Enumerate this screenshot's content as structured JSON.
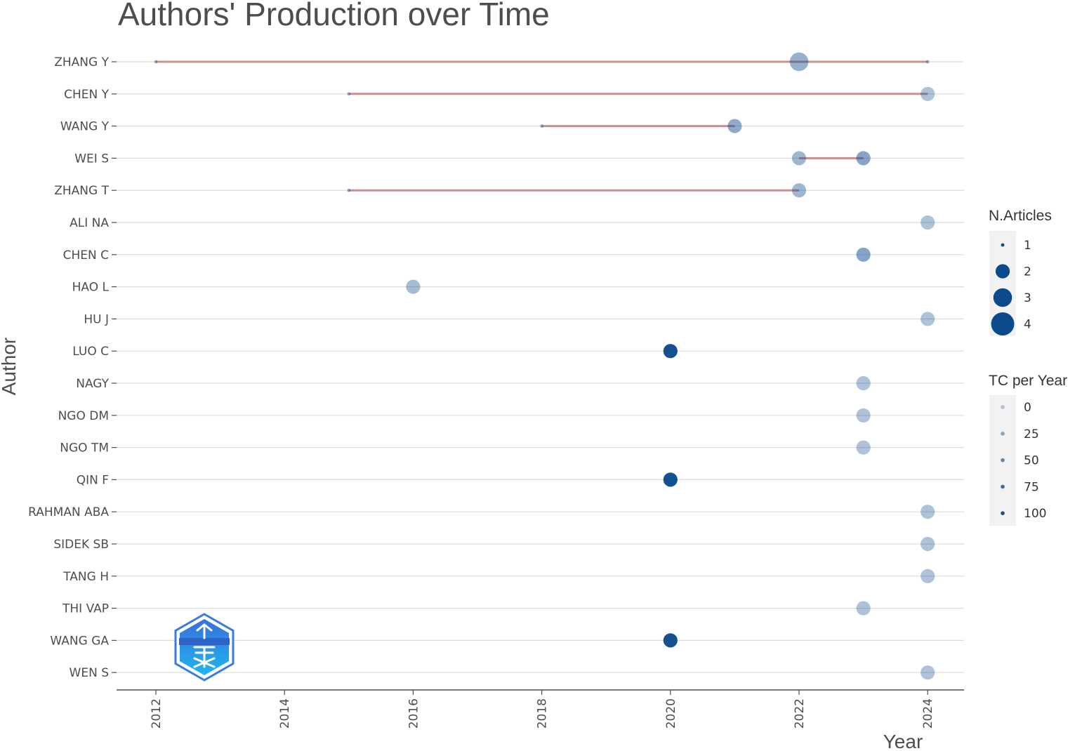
{
  "chart_data": {
    "type": "scatter",
    "title": "Authors' Production over Time",
    "xlabel": "Year",
    "ylabel": "Author",
    "xlim": [
      2011.5,
      2024.7
    ],
    "xticks": [
      2012,
      2014,
      2016,
      2018,
      2020,
      2022,
      2024
    ],
    "grid": "horizontal",
    "legend_position": "right",
    "colors": {
      "point": "#0d4a8c",
      "line": "#c08080",
      "grid": "#dcdcdc"
    },
    "authors": [
      "ZHANG Y",
      "CHEN Y",
      "WANG Y",
      "WEI S",
      "ZHANG T",
      "ALI NA",
      "CHEN C",
      "HAO L",
      "HU J",
      "LUO C",
      "NAGY",
      "NGO DM",
      "NGO TM",
      "QIN F",
      "RAHMAN ABA",
      "SIDEK SB",
      "TANG H",
      "THI VAP",
      "WANG GA",
      "WEN S"
    ],
    "timelines": [
      {
        "author": "ZHANG Y",
        "from": 2012,
        "to": 2024
      },
      {
        "author": "CHEN Y",
        "from": 2015,
        "to": 2024
      },
      {
        "author": "WANG Y",
        "from": 2018,
        "to": 2021
      },
      {
        "author": "WEI S",
        "from": 2022,
        "to": 2023
      },
      {
        "author": "ZHANG T",
        "from": 2015,
        "to": 2022
      }
    ],
    "points": [
      {
        "author": "ZHANG Y",
        "year": 2012,
        "articles": 1,
        "tc_per_year": 20
      },
      {
        "author": "ZHANG Y",
        "year": 2022,
        "articles": 3,
        "tc_per_year": 20
      },
      {
        "author": "ZHANG Y",
        "year": 2024,
        "articles": 1,
        "tc_per_year": 20
      },
      {
        "author": "CHEN Y",
        "year": 2015,
        "articles": 1,
        "tc_per_year": 20
      },
      {
        "author": "CHEN Y",
        "year": 2024,
        "articles": 2,
        "tc_per_year": 5
      },
      {
        "author": "WANG Y",
        "year": 2018,
        "articles": 1,
        "tc_per_year": 20
      },
      {
        "author": "WANG Y",
        "year": 2021,
        "articles": 2,
        "tc_per_year": 25
      },
      {
        "author": "WEI S",
        "year": 2022,
        "articles": 2,
        "tc_per_year": 15
      },
      {
        "author": "WEI S",
        "year": 2023,
        "articles": 2,
        "tc_per_year": 30
      },
      {
        "author": "ZHANG T",
        "year": 2015,
        "articles": 1,
        "tc_per_year": 20
      },
      {
        "author": "ZHANG T",
        "year": 2022,
        "articles": 2,
        "tc_per_year": 15
      },
      {
        "author": "ALI NA",
        "year": 2024,
        "articles": 2,
        "tc_per_year": 5
      },
      {
        "author": "CHEN C",
        "year": 2023,
        "articles": 2,
        "tc_per_year": 30
      },
      {
        "author": "HAO L",
        "year": 2016,
        "articles": 2,
        "tc_per_year": 10
      },
      {
        "author": "HU J",
        "year": 2024,
        "articles": 2,
        "tc_per_year": 5
      },
      {
        "author": "LUO C",
        "year": 2020,
        "articles": 2,
        "tc_per_year": 100
      },
      {
        "author": "NAGY",
        "year": 2023,
        "articles": 2,
        "tc_per_year": 5
      },
      {
        "author": "NGO DM",
        "year": 2023,
        "articles": 2,
        "tc_per_year": 5
      },
      {
        "author": "NGO TM",
        "year": 2023,
        "articles": 2,
        "tc_per_year": 5
      },
      {
        "author": "QIN F",
        "year": 2020,
        "articles": 2,
        "tc_per_year": 100
      },
      {
        "author": "RAHMAN ABA",
        "year": 2024,
        "articles": 2,
        "tc_per_year": 5
      },
      {
        "author": "SIDEK SB",
        "year": 2024,
        "articles": 2,
        "tc_per_year": 5
      },
      {
        "author": "TANG H",
        "year": 2024,
        "articles": 2,
        "tc_per_year": 5
      },
      {
        "author": "THI VAP",
        "year": 2023,
        "articles": 2,
        "tc_per_year": 5
      },
      {
        "author": "WANG GA",
        "year": 2020,
        "articles": 2,
        "tc_per_year": 100
      },
      {
        "author": "WEN S",
        "year": 2024,
        "articles": 2,
        "tc_per_year": 5
      }
    ],
    "legend_size": {
      "title": "N.Articles",
      "entries": [
        {
          "label": "1",
          "articles": 1
        },
        {
          "label": "2",
          "articles": 2
        },
        {
          "label": "3",
          "articles": 3
        },
        {
          "label": "4",
          "articles": 4
        }
      ]
    },
    "legend_alpha": {
      "title": "TC per Year",
      "entries": [
        {
          "label": "0",
          "tc_per_year": 0
        },
        {
          "label": "25",
          "tc_per_year": 25
        },
        {
          "label": "50",
          "tc_per_year": 50
        },
        {
          "label": "75",
          "tc_per_year": 75
        },
        {
          "label": "100",
          "tc_per_year": 100
        }
      ]
    }
  },
  "watermark": {
    "name": "hexagon-logo"
  }
}
